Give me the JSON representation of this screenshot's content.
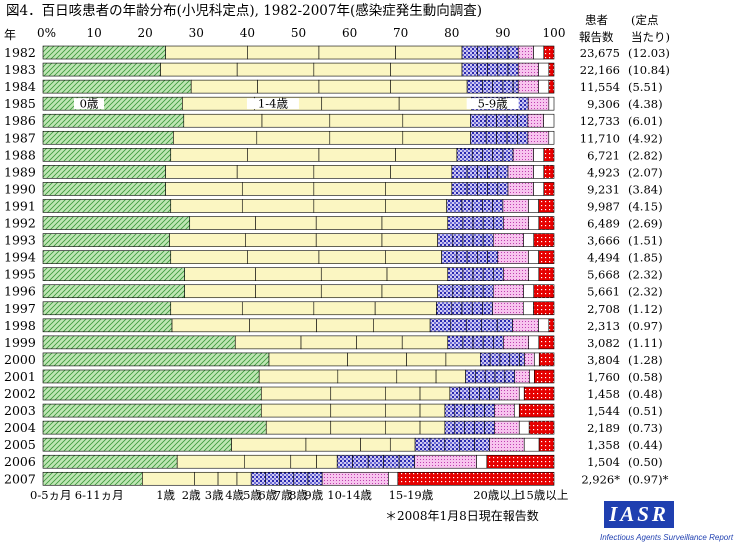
{
  "chart_data": {
    "type": "bar",
    "orientation": "horizontal",
    "stacked": "percent",
    "title": "図4．百日咳患者の年齢分布(小児科定点), 1982-2007年(感染症発生動向調査)",
    "year_axis_label": "年",
    "x_ticks": [
      "0%",
      "10",
      "20",
      "30",
      "40",
      "50",
      "60",
      "70",
      "80",
      "90",
      "100"
    ],
    "xlim": [
      0,
      100
    ],
    "grid": false,
    "categories": [
      "1982",
      "1983",
      "1984",
      "1985",
      "1986",
      "1987",
      "1988",
      "1989",
      "1990",
      "1991",
      "1992",
      "1993",
      "1994",
      "1995",
      "1996",
      "1997",
      "1998",
      "1999",
      "2000",
      "2001",
      "2002",
      "2003",
      "2004",
      "2005",
      "2006",
      "2007"
    ],
    "series": [
      {
        "name": "0-5ヵ月",
        "group": "0歳",
        "color": "#b9e2b0",
        "pattern": "diag",
        "values": [
          24,
          23,
          29,
          27,
          27,
          25,
          25,
          24,
          24,
          25,
          29,
          25,
          25,
          28,
          28,
          25,
          25,
          38,
          46,
          44,
          44,
          44,
          45,
          38,
          26,
          21
        ]
      },
      {
        "name": "6-11ヵ月",
        "group": "0歳",
        "color": "#b9e2b0",
        "pattern": "diag",
        "values": [
          0,
          0,
          0,
          0,
          0,
          0,
          0,
          0,
          0,
          0,
          0,
          0,
          0,
          0,
          0,
          0,
          0,
          0,
          0,
          0,
          0,
          0,
          0,
          0,
          0,
          0
        ]
      },
      {
        "name": "1歳",
        "group": "1-4歳",
        "color": "#fbf6c2",
        "pattern": "none",
        "values": [
          16,
          15,
          13,
          14,
          15,
          16,
          15,
          14,
          15,
          14,
          13,
          15,
          15,
          14,
          14,
          14,
          15,
          13,
          16,
          16,
          14,
          14,
          13,
          15,
          13,
          11
        ]
      },
      {
        "name": "2歳",
        "group": "1-4歳",
        "color": "#fbf6c2",
        "pattern": "none",
        "values": [
          14,
          15,
          12,
          13,
          13,
          14,
          14,
          15,
          14,
          14,
          12,
          14,
          14,
          13,
          13,
          14,
          13,
          11,
          12,
          12,
          11,
          11,
          11,
          11,
          9,
          5
        ]
      },
      {
        "name": "3歳",
        "group": "1-4歳",
        "color": "#fbf6c2",
        "pattern": "none",
        "values": [
          15,
          15,
          14,
          15,
          14,
          14,
          15,
          15,
          14,
          14,
          13,
          13,
          13,
          13,
          12,
          12,
          11,
          9,
          8,
          8,
          7,
          7,
          7,
          6,
          5,
          4
        ]
      },
      {
        "name": "4歳",
        "group": "1-4歳",
        "color": "#fbf6c2",
        "pattern": "none",
        "values": [
          13,
          14,
          15,
          14,
          13,
          13,
          12,
          12,
          13,
          12,
          13,
          11,
          11,
          12,
          11,
          12,
          11,
          9,
          7,
          6,
          6,
          5,
          5,
          5,
          4,
          3
        ]
      },
      {
        "name": "5歳",
        "group": "5-9歳",
        "color": "#c9c2ec",
        "pattern": "dots",
        "values": [
          3,
          3,
          3,
          3,
          3,
          3,
          3,
          3,
          3,
          3,
          3,
          3,
          3,
          3,
          3,
          3,
          4,
          3,
          2,
          2,
          2,
          2,
          2,
          3,
          3,
          3
        ]
      },
      {
        "name": "6歳",
        "group": "5-9歳",
        "color": "#c9c2ec",
        "pattern": "dots",
        "values": [
          2,
          2,
          2,
          2,
          2,
          2,
          2,
          2,
          2,
          2,
          2,
          2,
          2,
          2,
          2,
          2,
          3,
          2,
          2,
          2,
          2,
          2,
          2,
          3,
          3,
          3
        ]
      },
      {
        "name": "7歳",
        "group": "5-9歳",
        "color": "#c9c2ec",
        "pattern": "dots",
        "values": [
          2,
          2,
          2,
          2,
          2,
          2,
          2,
          2,
          2,
          2,
          2,
          2,
          2,
          2,
          2,
          2,
          3,
          2,
          2,
          2,
          2,
          2,
          2,
          3,
          3,
          3
        ]
      },
      {
        "name": "8歳",
        "group": "5-9歳",
        "color": "#c9c2ec",
        "pattern": "dots",
        "values": [
          2,
          2,
          2,
          2,
          2,
          2,
          2,
          2,
          2,
          2,
          2,
          2,
          2,
          2,
          2,
          2,
          3,
          2,
          2,
          2,
          2,
          2,
          2,
          3,
          3,
          3
        ]
      },
      {
        "name": "9歳",
        "group": "5-9歳",
        "color": "#c9c2ec",
        "pattern": "dots",
        "values": [
          2,
          2,
          1,
          2,
          2,
          2,
          2,
          2,
          2,
          2,
          2,
          2,
          2,
          2,
          2,
          2,
          3,
          2,
          1,
          2,
          2,
          2,
          2,
          3,
          3,
          3
        ]
      },
      {
        "name": "10-14歳",
        "group": "10-14歳",
        "color": "#f4b6e8",
        "pattern": "fine",
        "values": [
          3,
          4,
          4,
          4,
          3,
          4,
          4,
          5,
          5,
          5,
          5,
          6,
          6,
          5,
          6,
          6,
          5,
          5,
          2,
          3,
          4,
          4,
          5,
          7,
          12,
          14
        ]
      },
      {
        "name": "15-19歳",
        "group": "15-19歳",
        "color": "#ffffff",
        "pattern": "none",
        "values": [
          2,
          2,
          2,
          1,
          2,
          1,
          2,
          2,
          2,
          2,
          2,
          2,
          2,
          2,
          2,
          2,
          2,
          2,
          1,
          1,
          1,
          1,
          2,
          3,
          2,
          2
        ]
      },
      {
        "name": "20歳以上",
        "group": "20歳以上",
        "color": "#e60000",
        "pattern": "reddots",
        "values": [
          2,
          1,
          1,
          0,
          0,
          0,
          2,
          2,
          2,
          3,
          3,
          4,
          3,
          3,
          4,
          4,
          1,
          3,
          3,
          4,
          6,
          7,
          5,
          3,
          13,
          33
        ]
      }
    ],
    "reports": [
      "23,675",
      "22,166",
      "11,554",
      "9,306",
      "12,733",
      "11,710",
      "6,721",
      "4,923",
      "9,231",
      "9,987",
      "6,489",
      "3,666",
      "4,494",
      "5,668",
      "5,661",
      "2,708",
      "2,313",
      "3,082",
      "3,804",
      "1,760",
      "1,458",
      "1,544",
      "2,189",
      "1,358",
      "1,504",
      "2,926*"
    ],
    "per_sentinel": [
      "(12.03)",
      "(10.84)",
      "(5.51)",
      "(4.38)",
      "(6.01)",
      "(4.92)",
      "(2.82)",
      "(2.07)",
      "(3.84)",
      "(4.15)",
      "(2.69)",
      "(1.51)",
      "(1.85)",
      "(2.32)",
      "(2.32)",
      "(1.12)",
      "(0.97)",
      "(1.11)",
      "(1.28)",
      "(0.58)",
      "(0.48)",
      "(0.51)",
      "(0.73)",
      "(0.44)",
      "(0.50)",
      "(0.97)*"
    ],
    "right_headers": {
      "col1_l1": "患者",
      "col1_l2": "報告数",
      "col2_l1": "(定点",
      "col2_l2": "当たり)"
    },
    "group_labels": [
      {
        "text": "0歳",
        "year_index": 3,
        "at": 9
      },
      {
        "text": "1-4歳",
        "year_index": 3,
        "at": 45
      },
      {
        "text": "5-9歳",
        "year_index": 3,
        "at": 88
      }
    ],
    "bottom_labels": [
      "0-5ヵ月",
      "6-11ヵ月",
      "1歳",
      "2歳",
      "3歳",
      "4歳",
      "5歳",
      "6歳",
      "7歳",
      "8歳",
      "9歳",
      "10-14歳",
      "15-19歳",
      "20歳以上",
      "15歳以上"
    ],
    "footnote": "＊2008年1月8日現在報告数"
  },
  "logo": {
    "text": "IASR",
    "subtitle": "Infectious Agents Surveillance Report"
  }
}
